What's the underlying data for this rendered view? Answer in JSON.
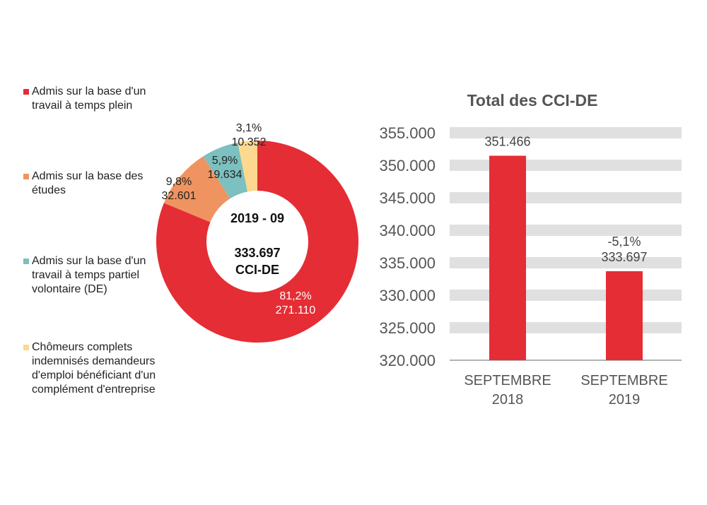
{
  "chart_data": [
    {
      "type": "pie",
      "variant": "donut",
      "center_label": {
        "period": "2019 - 09",
        "total": "333.697",
        "unit": "CCI-DE"
      },
      "legend_position": "left",
      "slices": [
        {
          "name": "Admis sur la base d'un travail à temps plein",
          "percent_label": "81,2%",
          "value_label": "271.110",
          "value": 271110,
          "color": "#e52d35"
        },
        {
          "name": "Admis sur la base des études",
          "percent_label": "9,8%",
          "value_label": "32.601",
          "value": 32601,
          "color": "#ef9460"
        },
        {
          "name": "Admis sur la base d'un travail à temps partiel volontaire (DE)",
          "percent_label": "5,9%",
          "value_label": "19.634",
          "value": 19634,
          "color": "#7cc0bf"
        },
        {
          "name": "Chômeurs complets indemnisés demandeurs d'emploi bénéficiant d'un complément d'entreprise",
          "percent_label": "3,1%",
          "value_label": "10.352",
          "value": 10352,
          "color": "#fcd98f"
        }
      ]
    },
    {
      "type": "bar",
      "title": "Total des CCI-DE",
      "categories": [
        "SEPTEMBRE 2018",
        "SEPTEMBRE 2019"
      ],
      "values": [
        351466,
        333697
      ],
      "data_labels": [
        [
          "351.466"
        ],
        [
          "-5,1%",
          "333.697"
        ]
      ],
      "ylim": [
        320000,
        355000
      ],
      "yticks": [
        "320.000",
        "325.000",
        "330.000",
        "335.000",
        "340.000",
        "345.000",
        "350.000",
        "355.000"
      ],
      "grid": true,
      "color": "#e52d35"
    }
  ]
}
